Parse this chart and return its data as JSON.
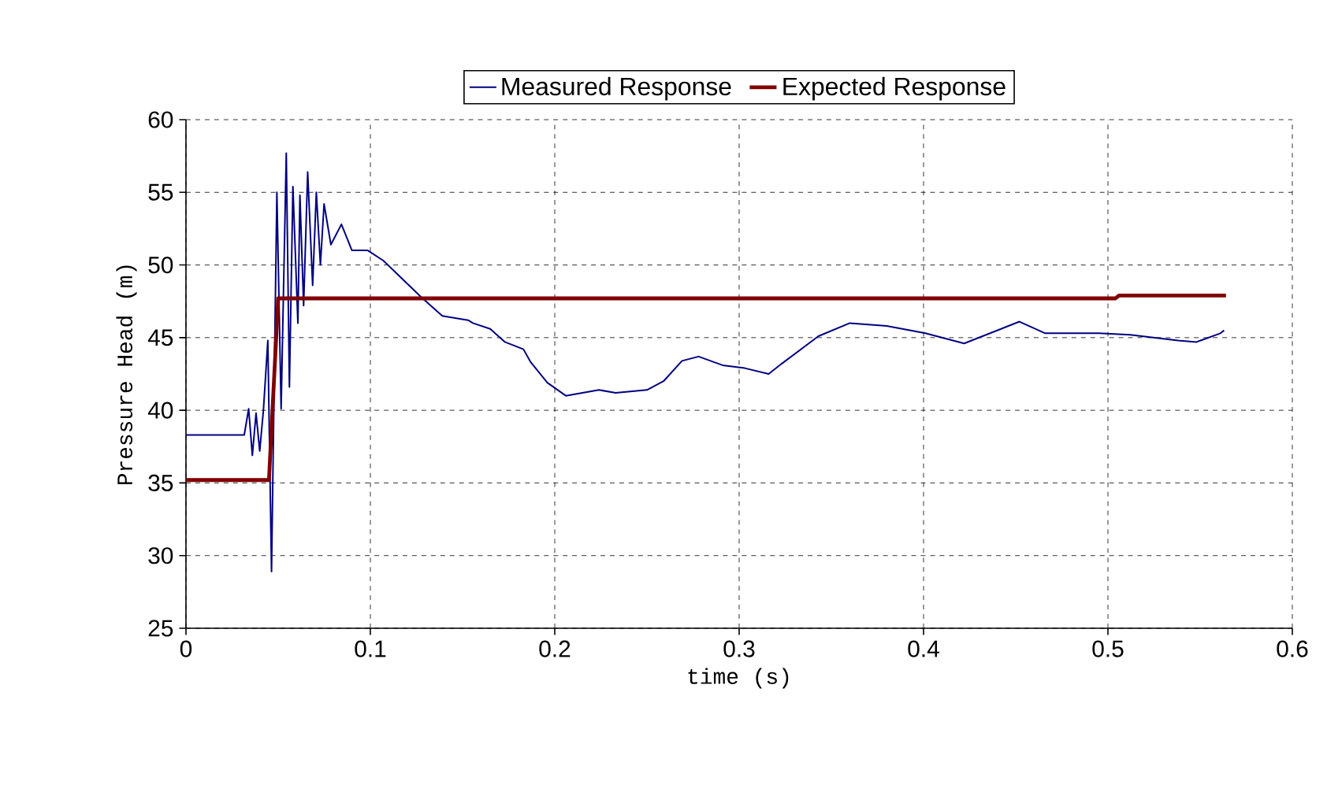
{
  "chart_data": {
    "type": "line",
    "xlabel": "time (s)",
    "ylabel": "Pressure Head (m)",
    "xlim": [
      0,
      0.6
    ],
    "xticks": [
      0,
      0.1,
      0.2,
      0.3,
      0.4,
      0.5,
      0.6
    ],
    "ylim": [
      25,
      60
    ],
    "yticks": [
      25,
      30,
      35,
      40,
      45,
      50,
      55,
      60
    ],
    "grid": true,
    "legend": "top",
    "marker": "none",
    "line_style": "solid",
    "series": [
      {
        "name": "Measured Response",
        "color": "#000080",
        "x": [
          0,
          0.0316,
          0.034,
          0.036,
          0.038,
          0.04,
          0.042,
          0.0444,
          0.0464,
          0.0493,
          0.0516,
          0.0544,
          0.0561,
          0.058,
          0.0607,
          0.0618,
          0.0638,
          0.066,
          0.0687,
          0.0707,
          0.0729,
          0.0749,
          0.0786,
          0.0843,
          0.09,
          0.0986,
          0.107,
          0.116,
          0.1275,
          0.139,
          0.153,
          0.1556,
          0.165,
          0.173,
          0.183,
          0.187,
          0.196,
          0.206,
          0.224,
          0.233,
          0.25,
          0.259,
          0.269,
          0.278,
          0.291,
          0.303,
          0.316,
          0.323,
          0.343,
          0.36,
          0.38,
          0.401,
          0.422,
          0.452,
          0.466,
          0.495,
          0.512,
          0.538,
          0.548,
          0.561,
          0.563
        ],
        "values": [
          38.3,
          38.3,
          40.1,
          36.9,
          39.8,
          37.2,
          40,
          44.8,
          28.9,
          55,
          40.1,
          57.7,
          41.6,
          55.4,
          46,
          54.8,
          47.2,
          56.4,
          48.6,
          55,
          50,
          54.2,
          51.4,
          52.8,
          51,
          51,
          50.3,
          49.2,
          47.8,
          46.5,
          46.2,
          46,
          45.6,
          44.7,
          44.2,
          43.3,
          41.9,
          41,
          41.4,
          41.2,
          41.4,
          42,
          43.4,
          43.7,
          43.1,
          42.9,
          42.5,
          43.2,
          45.1,
          46,
          45.8,
          45.3,
          44.6,
          46.1,
          45.3,
          45.3,
          45.2,
          44.8,
          44.7,
          45.3,
          45.5
        ]
      },
      {
        "name": "Expected Response",
        "color": "#800000",
        "x": [
          0,
          0.045,
          0.05,
          0.504,
          0.506,
          0.564
        ],
        "values": [
          35.2,
          35.2,
          47.7,
          47.7,
          47.9,
          47.9
        ]
      }
    ]
  }
}
